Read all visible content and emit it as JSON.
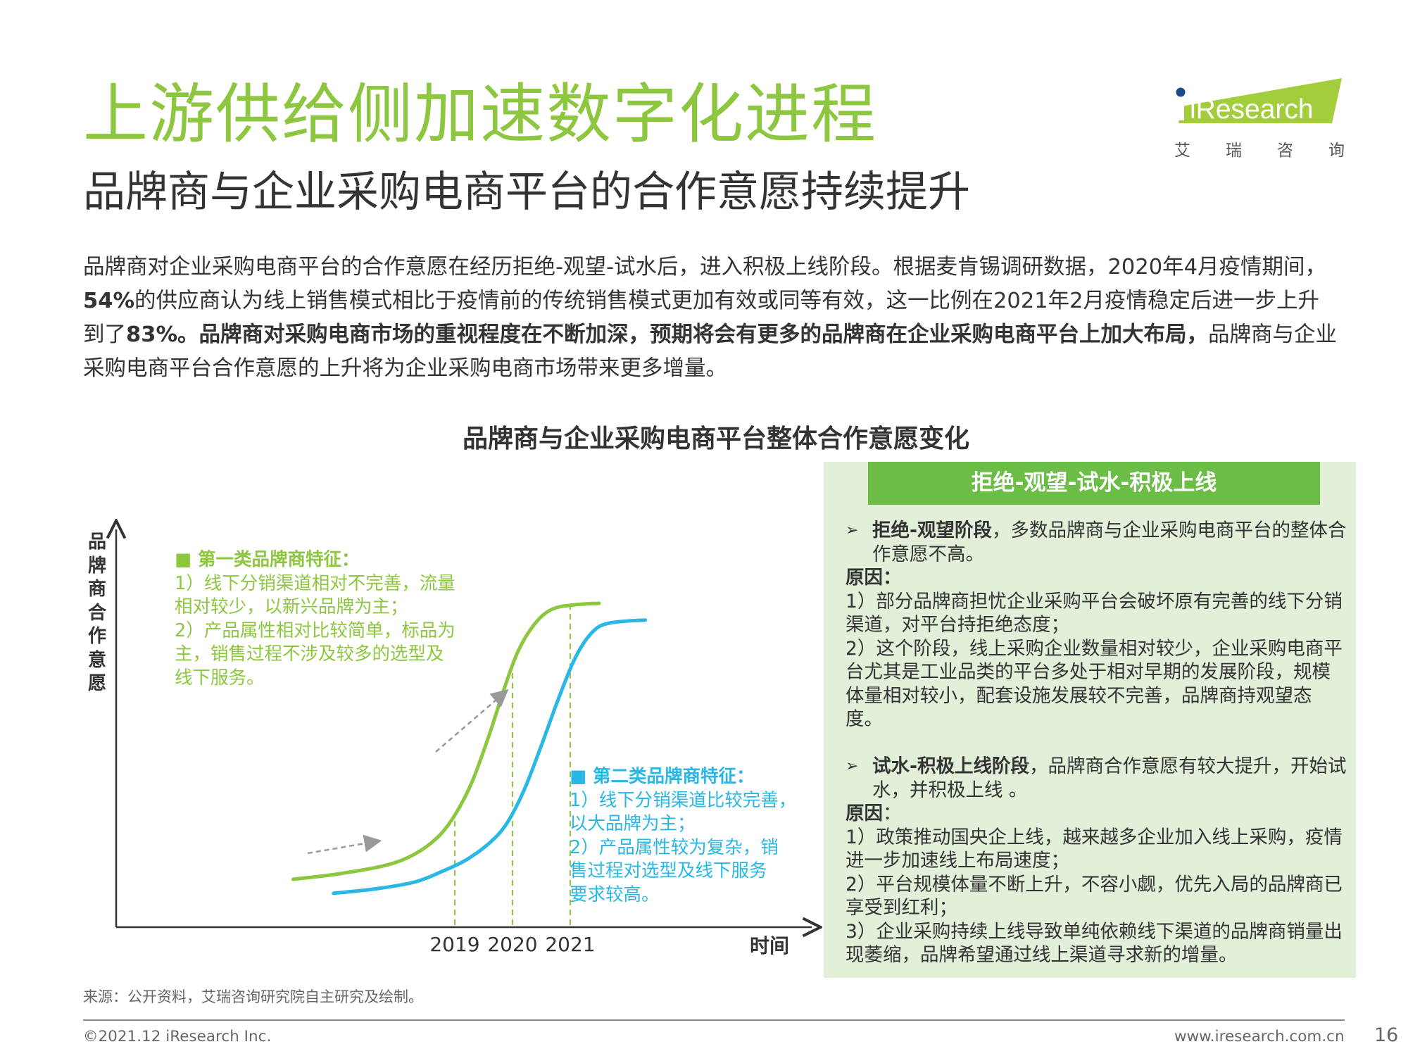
{
  "colors": {
    "green": "#8dc63f",
    "blue": "#29b7e5",
    "dark": "#333333",
    "panel_bg": "#e2efd9",
    "panel_head": "#6bbd45",
    "arrow_gray": "#999999"
  },
  "header": {
    "title": "上游供给侧加速数字化进程",
    "subtitle": "品牌商与企业采购电商平台的合作意愿持续提升"
  },
  "logo": {
    "text": "iResearch",
    "cn_chars": [
      "艾",
      "瑞",
      "咨",
      "询"
    ]
  },
  "intro": {
    "p1": "品牌商对企业采购电商平台的合作意愿在经历拒绝-观望-试水后，进入积极上线阶段。根据麦肯锡调研数据，2020年4月疫情期间，",
    "b1": "54%",
    "p2": "的供应商认为线上销售模式相比于疫情前的传统销售模式更加有效或同等有效，这一比例在2021年2月疫情稳定后进一步上升到了",
    "b2": "83%。品牌商对采购电商市场的重视程度在不断加深，预期将会有更多的品牌商在企业采购电商平台上加大布局，",
    "p3": "品牌商与企业采购电商平台合作意愿的上升将为企业采购电商市场带来更多增量。"
  },
  "chart_data": {
    "type": "line",
    "title": "品牌商与企业采购电商平台整体合作意愿变化",
    "ylabel": "品牌商合作意愿",
    "xlabel": "时间",
    "x_ticks": [
      "2019",
      "2020",
      "2021"
    ],
    "grid": false,
    "note": "Conceptual S-curves without a numeric scale; y values are an illustrative 0-1 willingness level",
    "series": [
      {
        "name": "第一类品牌商",
        "color": "#8dc63f",
        "points": [
          [
            2016.2,
            0.0
          ],
          [
            2017.0,
            0.02
          ],
          [
            2017.8,
            0.05
          ],
          [
            2018.3,
            0.09
          ],
          [
            2018.7,
            0.15
          ],
          [
            2019.0,
            0.23
          ],
          [
            2019.3,
            0.35
          ],
          [
            2019.6,
            0.52
          ],
          [
            2019.85,
            0.68
          ],
          [
            2020.1,
            0.82
          ],
          [
            2020.4,
            0.92
          ],
          [
            2020.7,
            0.97
          ],
          [
            2021.1,
            0.985
          ],
          [
            2021.5,
            0.99
          ]
        ]
      },
      {
        "name": "第二类品牌商",
        "color": "#29b7e5",
        "points": [
          [
            2016.9,
            -0.05
          ],
          [
            2017.6,
            -0.035
          ],
          [
            2018.3,
            -0.01
          ],
          [
            2018.8,
            0.03
          ],
          [
            2019.2,
            0.07
          ],
          [
            2019.6,
            0.13
          ],
          [
            2019.9,
            0.2
          ],
          [
            2020.2,
            0.32
          ],
          [
            2020.5,
            0.48
          ],
          [
            2020.8,
            0.65
          ],
          [
            2021.1,
            0.8
          ],
          [
            2021.4,
            0.89
          ],
          [
            2021.7,
            0.92
          ],
          [
            2022.3,
            0.93
          ]
        ]
      }
    ]
  },
  "category1": {
    "heading": "■ 第一类品牌商特征：",
    "lines": [
      "1）线下分销渠道相对不完善，流量",
      "相对较少，以新兴品牌为主；",
      "2）产品属性相对比较简单，标品为",
      "主，销售过程不涉及较多的选型及",
      "线下服务。"
    ]
  },
  "category2": {
    "heading": "■ 第二类品牌商特征：",
    "lines": [
      "1）线下分销渠道比较完善，",
      "以大品牌为主；",
      "2）产品属性较为复杂，销",
      "售过程对选型及线下服务",
      "要求较高。"
    ]
  },
  "panel": {
    "head": "拒绝-观望-试水-积极上线",
    "s1_bold": "拒绝-观望阶段",
    "s1_text": "，多数品牌商与企业采购电商平台的整体合作意愿不高。",
    "s1_reason": "原因：",
    "s1_lines": [
      "1）部分品牌商担忧企业采购平台会破坏原有完善的线下分销渠道，对平台持拒绝态度；",
      "2）这个阶段，线上采购企业数量相对较少，企业采购电商平台尤其是工业品类的平台多处于相对早期的发展阶段，规模体量相对较小，配套设施发展较不完善，品牌商持观望态度。"
    ],
    "s2_bold": "试水-积极上线阶段",
    "s2_text": "，品牌商合作意愿有较大提升，开始试水，并积极上线 。",
    "s2_reason": "原因",
    "s2_reason_colon": "：",
    "s2_lines": [
      "1）政策推动国央企上线，越来越多企业加入线上采购，疫情进一步加速线上布局速度；",
      "2）平台规模体量不断上升，不容小觑，优先入局的品牌商已享受到红利；",
      "3）企业采购持续上线导致单纯依赖线下渠道的品牌商销量出现萎缩，品牌希望通过线上渠道寻求新的增量。"
    ]
  },
  "source": "来源：公开资料，艾瑞咨询研究院自主研究及绘制。",
  "footer": {
    "copyright": "©2021.12 iResearch Inc.",
    "url": "www.iresearch.com.cn",
    "page": "16"
  }
}
